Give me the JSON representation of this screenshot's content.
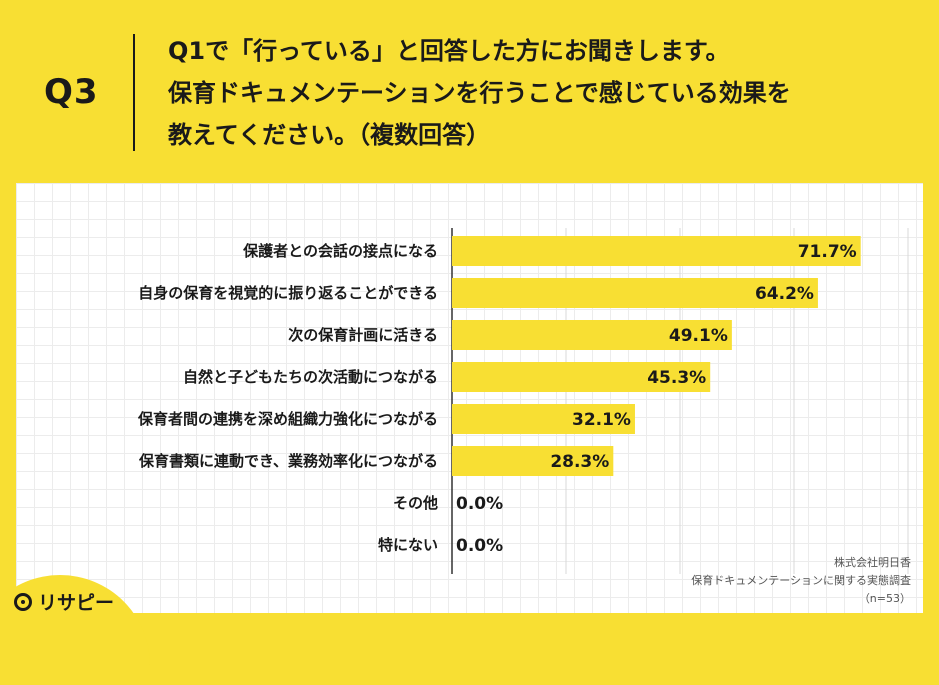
{
  "header": {
    "question_number": "Q3",
    "question_lines": [
      "Q1で「行っている」と回答した方にお聞きします。",
      "保育ドキュメンテーションを行うことで感じている効果を",
      "教えてください。（複数回答）"
    ]
  },
  "chart_data": {
    "type": "bar",
    "orientation": "horizontal",
    "categories": [
      "保護者との会話の接点になる",
      "自身の保育を視覚的に振り返ることができる",
      "次の保育計画に活きる",
      "自然と子どもたちの次活動につながる",
      "保育者間の連携を深め組織力強化につながる",
      "保育書類に連動でき、業務効率化につながる",
      "その他",
      "特にない"
    ],
    "values": [
      71.7,
      64.2,
      49.1,
      45.3,
      32.1,
      28.3,
      0.0,
      0.0
    ],
    "value_labels": [
      "71.7%",
      "64.2%",
      "49.1%",
      "45.3%",
      "32.1%",
      "28.3%",
      "0.0%",
      "0.0%"
    ],
    "xlim": [
      0,
      80
    ],
    "bar_color": "#f8df33",
    "grid": true
  },
  "source": {
    "company": "株式会社明日香",
    "survey": "保育ドキュメンテーションに関する実態調査",
    "sample": "（n=53）"
  },
  "brand": {
    "logo_text": "リサピー"
  }
}
